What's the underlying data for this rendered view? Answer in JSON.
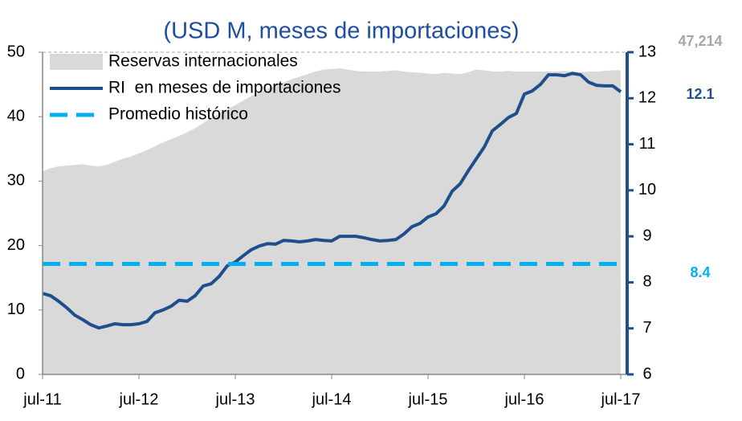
{
  "chart_data": {
    "type": "area-line",
    "title": "(USD M, meses de importaciones)",
    "categories": [
      "jul-11",
      null,
      null,
      null,
      null,
      null,
      null,
      null,
      null,
      null,
      null,
      null,
      "jul-12",
      null,
      null,
      null,
      null,
      null,
      null,
      null,
      null,
      null,
      null,
      null,
      "jul-13",
      null,
      null,
      null,
      null,
      null,
      null,
      null,
      null,
      null,
      null,
      null,
      "jul-14",
      null,
      null,
      null,
      null,
      null,
      null,
      null,
      null,
      null,
      null,
      null,
      "jul-15",
      null,
      null,
      null,
      null,
      null,
      null,
      null,
      null,
      null,
      null,
      null,
      "jul-16",
      null,
      null,
      null,
      null,
      null,
      null,
      null,
      null,
      null,
      null,
      null,
      "jul-17"
    ],
    "series": [
      {
        "name": "Reservas internacionales",
        "color": "#d9d9d9",
        "axis": "y",
        "values": [
          31.5,
          32,
          32.3,
          32.4,
          32.5,
          32.6,
          32.4,
          32.3,
          32.5,
          33,
          33.5,
          33.8,
          34.3,
          34.8,
          35.4,
          36,
          36.5,
          37,
          37.6,
          38.2,
          39,
          39.8,
          40.5,
          41.2,
          41.8,
          42.5,
          43.2,
          43.8,
          44.3,
          44.8,
          45.3,
          45.8,
          46.2,
          46.6,
          47,
          47.3,
          47.4,
          47.5,
          47.3,
          47.1,
          47,
          47,
          47,
          47.1,
          47.2,
          47,
          46.9,
          46.8,
          46.7,
          46.6,
          46.8,
          46.7,
          46.6,
          46.9,
          47.3,
          47.2,
          47,
          47,
          47.1,
          47,
          47,
          47,
          47,
          47,
          47,
          47.1,
          47,
          46.9,
          47,
          47,
          47.1,
          47.2,
          47.214
        ],
        "last_label": "47,214",
        "label_color": "#a6a6a6"
      },
      {
        "name": "RI  en meses de importaciones",
        "color": "#1f4e8c",
        "axis": "y2",
        "values": [
          7.76,
          7.71,
          7.59,
          7.45,
          7.29,
          7.19,
          7.08,
          7.01,
          7.05,
          7.1,
          7.08,
          7.08,
          7.1,
          7.15,
          7.34,
          7.4,
          7.48,
          7.61,
          7.59,
          7.71,
          7.92,
          7.97,
          8.13,
          8.36,
          8.44,
          8.58,
          8.71,
          8.79,
          8.84,
          8.83,
          8.91,
          8.9,
          8.88,
          8.9,
          8.93,
          8.91,
          8.9,
          9,
          9,
          9,
          8.97,
          8.93,
          8.9,
          8.91,
          8.93,
          9.05,
          9.21,
          9.28,
          9.42,
          9.49,
          9.66,
          9.98,
          10.14,
          10.42,
          10.68,
          10.94,
          11.29,
          11.43,
          11.58,
          11.67,
          12.09,
          12.16,
          12.3,
          12.51,
          12.51,
          12.49,
          12.54,
          12.51,
          12.35,
          12.28,
          12.27,
          12.27,
          12.14
        ],
        "last_label": "12.1",
        "label_color": "#1f4e8c"
      },
      {
        "name": "Promedio histórico",
        "color": "#00b0f0",
        "axis": "y2",
        "dashed": true,
        "value": 8.4,
        "last_label": "8.4",
        "label_color": "#00b0f0"
      }
    ],
    "ylim": [
      0,
      50
    ],
    "yticks": [
      0,
      10,
      20,
      30,
      40,
      50
    ],
    "y2lim": [
      6,
      13
    ],
    "y2ticks": [
      6,
      7,
      8,
      9,
      10,
      11,
      12,
      13
    ],
    "legend": "upper left"
  }
}
